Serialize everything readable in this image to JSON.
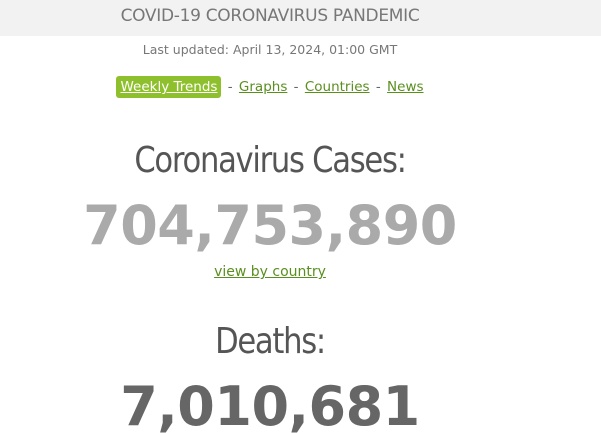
{
  "header": {
    "title": "COVID-19 CORONAVIRUS PANDEMIC",
    "last_updated": "Last updated: April 13, 2024, 01:00 GMT"
  },
  "nav": {
    "items": [
      {
        "label": "Weekly Trends",
        "active": true
      },
      {
        "label": "Graphs",
        "active": false
      },
      {
        "label": "Countries",
        "active": false
      },
      {
        "label": "News",
        "active": false
      }
    ],
    "separator": "-"
  },
  "cases": {
    "label": "Coronavirus Cases:",
    "value": "704,753,890",
    "link": "view by country"
  },
  "deaths": {
    "label": "Deaths:",
    "value": "7,010,681"
  },
  "colors": {
    "accent_green": "#8ec02e",
    "link_green": "#5a8f1f",
    "cases_gray": "#aaaaaa",
    "deaths_gray": "#666666"
  }
}
